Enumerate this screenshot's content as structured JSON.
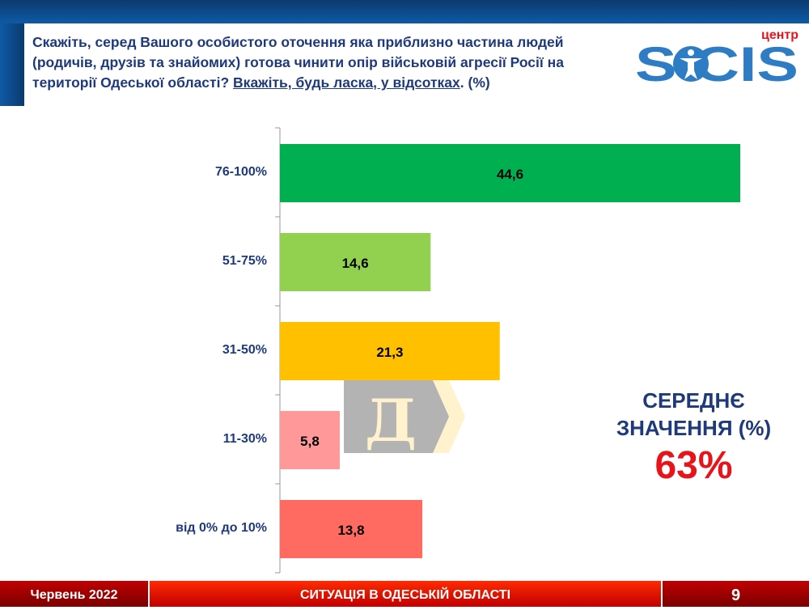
{
  "header": {
    "question_main": "Скажіть, серед Вашого особистого оточення яка приблизно частина людей (родичів, друзів та знайомих) готова чинити опір військовій агресії Росії на території Одеської області?",
    "question_instruction": "Вкажіть, будь ласка, у відсотках",
    "question_suffix": ". (%)"
  },
  "logo": {
    "top": "центр",
    "word": "SOCIS"
  },
  "watermark": {
    "letter": "Д"
  },
  "chart_data": {
    "type": "bar",
    "orientation": "horizontal",
    "categories": [
      "76-100%",
      "51-75%",
      "31-50%",
      "11-30%",
      "від 0% до 10%"
    ],
    "values": [
      44.6,
      14.6,
      21.3,
      5.8,
      13.8
    ],
    "labels": [
      "44,6",
      "14,6",
      "21,3",
      "5,8",
      "13,8"
    ],
    "colors": [
      "#00b050",
      "#92d050",
      "#ffc000",
      "#ff9999",
      "#ff6b61"
    ],
    "xlim": [
      0,
      44.6
    ],
    "grid": false
  },
  "summary": {
    "label_line1": "СЕРЕДНЄ",
    "label_line2": "ЗНАЧЕННЯ (%)",
    "value": "63%"
  },
  "footer": {
    "date": "Червень 2022",
    "section": "СИТУАЦІЯ В ОДЕСЬКІЙ ОБЛАСТІ",
    "page": "9"
  }
}
